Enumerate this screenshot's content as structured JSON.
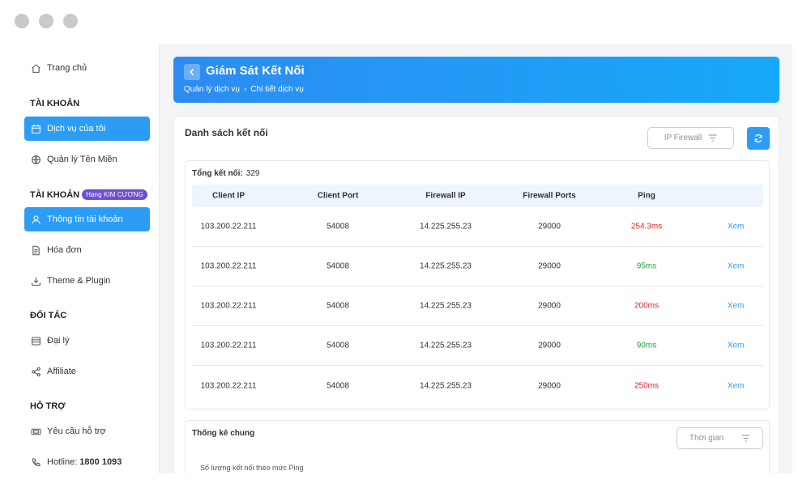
{
  "window": {
    "controls": [
      "close",
      "minimize",
      "maximize"
    ]
  },
  "sidebar": {
    "home": {
      "label": "Trang  chủ",
      "icon": "home-icon"
    },
    "sections": {
      "account": "TÀI KHOẢN",
      "account2": "TÀI KHOẢN",
      "partner": "ĐỐI TÁC",
      "support": "HỖ TRỢ"
    },
    "rank_badge": "Hạng KIM CƯƠNG",
    "items": {
      "services": "Dịch vụ của tôi",
      "domains": "Quản lý Tên Miền",
      "account_info": "Thông tin tài khoản",
      "invoices": "Hóa đơn",
      "themes": "Theme & Plugin",
      "agency": "Đại lý",
      "affiliate": "Affiliate",
      "ticket": "Yêu cầu hỗ trợ",
      "hotline_label": "Hotline:",
      "hotline_number": "1800 1093"
    }
  },
  "header": {
    "title": "Giám Sát Kết Nối",
    "breadcrumb": [
      "Quản lý dịch vụ",
      "Chi tiết dịch vụ"
    ]
  },
  "connections": {
    "title": "Danh sách kết nối",
    "filter_label": "IP Firewall",
    "total_label": "Tổng kết nối:",
    "total_value": "329",
    "columns": [
      "Client IP",
      "Client Port",
      "Firewall IP",
      "Firewall Ports",
      "Ping"
    ],
    "action_label": "Xem",
    "colors": {
      "ping_high": "#e02424",
      "ping_ok": "#23a03a",
      "link": "#2d9cf5"
    },
    "rows": [
      {
        "client_ip": "103.200.22.211",
        "client_port": "54008",
        "firewall_ip": "14.225.255.23",
        "firewall_ports": "29000",
        "ping": "254.3ms",
        "status": "high"
      },
      {
        "client_ip": "103.200.22.211",
        "client_port": "54008",
        "firewall_ip": "14.225.255.23",
        "firewall_ports": "29000",
        "ping": "95ms",
        "status": "ok"
      },
      {
        "client_ip": "103.200.22.211",
        "client_port": "54008",
        "firewall_ip": "14.225.255.23",
        "firewall_ports": "29000",
        "ping": "200ms",
        "status": "high"
      },
      {
        "client_ip": "103.200.22.211",
        "client_port": "54008",
        "firewall_ip": "14.225.255.23",
        "firewall_ports": "29000",
        "ping": "90ms",
        "status": "ok"
      },
      {
        "client_ip": "103.200.22.211",
        "client_port": "54008",
        "firewall_ip": "14.225.255.23",
        "firewall_ports": "29000",
        "ping": "250ms",
        "status": "high"
      }
    ]
  },
  "stats": {
    "title": "Thống kê chung",
    "time_filter": "Thời gian",
    "subtitle": "Số lượng kết nối theo mức Ping"
  }
}
